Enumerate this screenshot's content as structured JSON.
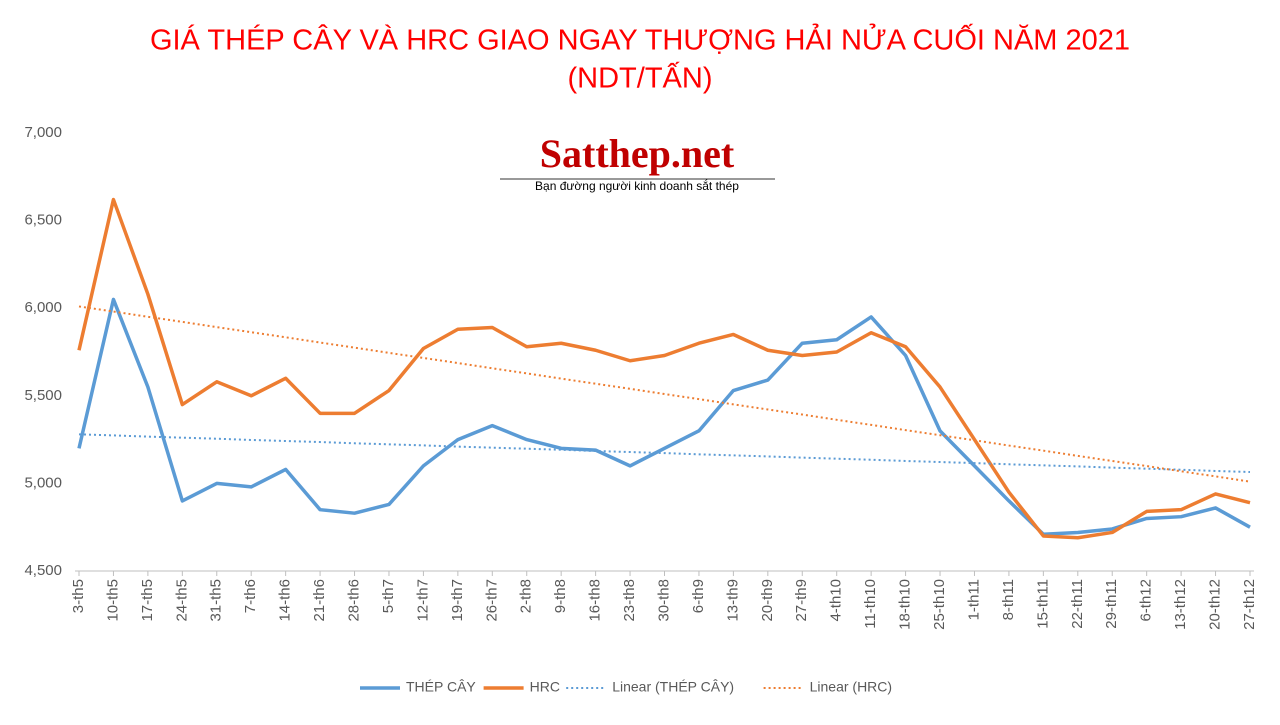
{
  "chart_data": {
    "type": "line",
    "title": "GIÁ THÉP CÂY VÀ HRC GIAO NGAY THƯỢNG HẢI NỬA CUỐI NĂM 2021",
    "subtitle": "(NDT/TẤN)",
    "annotations": [
      "Satthep.net",
      "Bạn đường người kinh doanh sắt thép"
    ],
    "categories": [
      "3-th5",
      "10-th5",
      "17-th5",
      "24-th5",
      "31-th5",
      "7-th6",
      "14-th6",
      "21-th6",
      "28-th6",
      "5-th7",
      "12-th7",
      "19-th7",
      "26-th7",
      "2-th8",
      "9-th8",
      "16-th8",
      "23-th8",
      "30-th8",
      "6-th9",
      "13-th9",
      "20-th9",
      "27-th9",
      "4-th10",
      "11-th10",
      "18-th10",
      "25-th10",
      "1-th11",
      "8-th11",
      "15-th11",
      "22-th11",
      "29-th11",
      "6-th12",
      "13-th12",
      "20-th12",
      "27-th12"
    ],
    "series": [
      {
        "name": "THÉP CÂY",
        "color": "#5b9bd5",
        "style": "solid",
        "values": [
          5200,
          6050,
          5550,
          4900,
          5000,
          4980,
          5080,
          4850,
          4830,
          4880,
          5100,
          5250,
          5330,
          5250,
          5200,
          5190,
          5100,
          5200,
          5300,
          5530,
          5590,
          5800,
          5820,
          5950,
          5730,
          5300,
          5100,
          4900,
          4710,
          4720,
          4740,
          4800,
          4810,
          4860,
          4750
        ]
      },
      {
        "name": "HRC",
        "color": "#ed7d31",
        "style": "solid",
        "values": [
          5760,
          6620,
          6080,
          5450,
          5580,
          5500,
          5600,
          5400,
          5400,
          5530,
          5770,
          5880,
          5890,
          5780,
          5800,
          5760,
          5700,
          5730,
          5800,
          5850,
          5760,
          5730,
          5750,
          5860,
          5780,
          5550,
          5250,
          4950,
          4700,
          4690,
          4720,
          4840,
          4850,
          4940,
          4890
        ]
      },
      {
        "name": "Linear (THÉP CÂY)",
        "color": "#5b9bd5",
        "style": "dotted",
        "values": [
          5280,
          5274,
          5267,
          5261,
          5255,
          5248,
          5242,
          5236,
          5229,
          5223,
          5217,
          5210,
          5204,
          5198,
          5192,
          5185,
          5179,
          5173,
          5166,
          5160,
          5154,
          5147,
          5141,
          5135,
          5128,
          5122,
          5116,
          5109,
          5103,
          5097,
          5090,
          5084,
          5078,
          5071,
          5065
        ]
      },
      {
        "name": "Linear (HRC)",
        "color": "#ed7d31",
        "style": "dotted",
        "values": [
          6010,
          5981,
          5951,
          5922,
          5892,
          5863,
          5834,
          5804,
          5775,
          5745,
          5716,
          5687,
          5657,
          5628,
          5598,
          5569,
          5540,
          5510,
          5481,
          5451,
          5422,
          5393,
          5363,
          5334,
          5304,
          5275,
          5246,
          5216,
          5187,
          5157,
          5128,
          5099,
          5069,
          5040,
          5010
        ]
      }
    ],
    "ylim": [
      4500,
      7000
    ],
    "yticks": [
      {
        "value": 4500,
        "label": "4,500"
      },
      {
        "value": 5000,
        "label": "5,000"
      },
      {
        "value": 5500,
        "label": "5,500"
      },
      {
        "value": 6000,
        "label": "6,000"
      },
      {
        "value": 6500,
        "label": "6,500"
      },
      {
        "value": 7000,
        "label": "7,000"
      }
    ],
    "grid": false,
    "legend": "bottom"
  }
}
